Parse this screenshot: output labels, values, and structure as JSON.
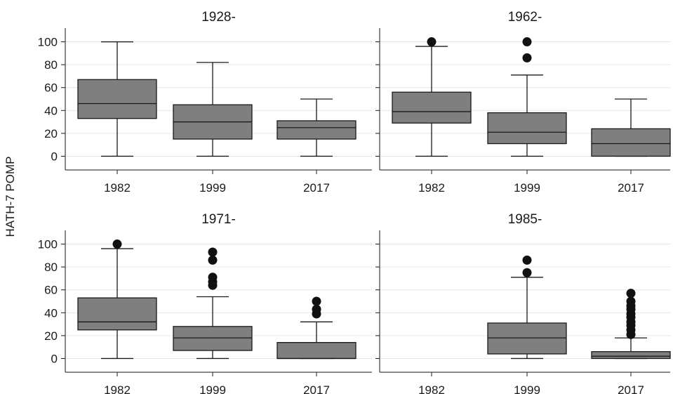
{
  "figure": {
    "ylabel": "HATH-7 POMP"
  },
  "chart_data": [
    {
      "type": "boxplot",
      "title": "1928-",
      "categories": [
        "1982",
        "1999",
        "2017"
      ],
      "ylim": [
        -12,
        112
      ],
      "yticks": [
        0,
        20,
        40,
        60,
        80,
        100
      ],
      "grid": true,
      "boxes": [
        {
          "category": "1982",
          "min": 0,
          "q1": 33,
          "median": 46,
          "q3": 67,
          "max": 100,
          "outliers": []
        },
        {
          "category": "1999",
          "min": 0,
          "q1": 15,
          "median": 30,
          "q3": 45,
          "max": 82,
          "outliers": []
        },
        {
          "category": "2017",
          "min": 0,
          "q1": 15,
          "median": 25,
          "q3": 31,
          "max": 50,
          "outliers": []
        }
      ]
    },
    {
      "type": "boxplot",
      "title": "1962-",
      "categories": [
        "1982",
        "1999",
        "2017"
      ],
      "ylim": [
        -12,
        112
      ],
      "yticks": [
        0,
        20,
        40,
        60,
        80,
        100
      ],
      "grid": true,
      "boxes": [
        {
          "category": "1982",
          "min": 0,
          "q1": 29,
          "median": 39,
          "q3": 56,
          "max": 96,
          "outliers": [
            100
          ]
        },
        {
          "category": "1999",
          "min": 0,
          "q1": 11,
          "median": 21,
          "q3": 38,
          "max": 71,
          "outliers": [
            86,
            100
          ]
        },
        {
          "category": "2017",
          "min": 0,
          "q1": 0,
          "median": 11,
          "q3": 24,
          "max": 50,
          "outliers": []
        }
      ]
    },
    {
      "type": "boxplot",
      "title": "1971-",
      "categories": [
        "1982",
        "1999",
        "2017"
      ],
      "ylim": [
        -12,
        112
      ],
      "yticks": [
        0,
        20,
        40,
        60,
        80,
        100
      ],
      "grid": true,
      "boxes": [
        {
          "category": "1982",
          "min": 0,
          "q1": 25,
          "median": 32,
          "q3": 53,
          "max": 96,
          "outliers": [
            100
          ]
        },
        {
          "category": "1999",
          "min": 0,
          "q1": 7,
          "median": 18,
          "q3": 28,
          "max": 54,
          "outliers": [
            64,
            67,
            71,
            86,
            93
          ]
        },
        {
          "category": "2017",
          "min": 0,
          "q1": 0,
          "median": 0,
          "q3": 14,
          "max": 32,
          "outliers": [
            39,
            43,
            50
          ]
        }
      ]
    },
    {
      "type": "boxplot",
      "title": "1985-",
      "categories": [
        "1982",
        "1999",
        "2017"
      ],
      "ylim": [
        -12,
        112
      ],
      "yticks": [
        0,
        20,
        40,
        60,
        80,
        100
      ],
      "grid": true,
      "boxes": [
        {
          "category": "1999",
          "min": 0,
          "q1": 4,
          "median": 18,
          "q3": 31,
          "max": 71,
          "outliers": [
            75,
            86
          ]
        },
        {
          "category": "2017",
          "min": 0,
          "q1": 0,
          "median": 2,
          "q3": 6,
          "max": 18,
          "outliers": [
            21,
            25,
            29,
            32,
            36,
            39,
            43,
            46,
            50,
            57
          ]
        }
      ]
    }
  ],
  "colors": {
    "box_fill": "#7f7f7f",
    "stroke": "#1a1a1a",
    "grid": "#e6e6e6",
    "outlier": "#111111"
  }
}
